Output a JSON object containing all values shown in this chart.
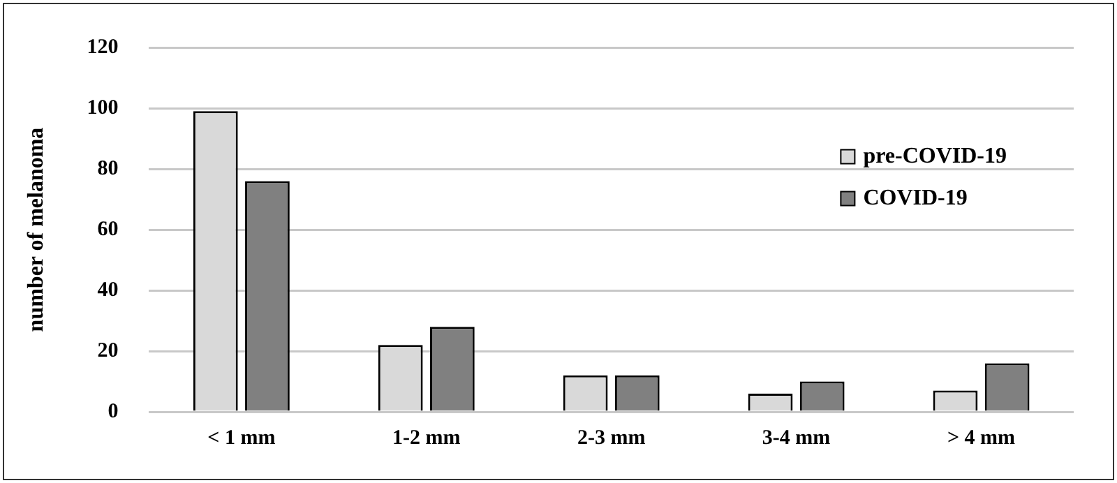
{
  "chart_data": {
    "type": "bar",
    "ylabel": "number of melanoma",
    "categories": [
      "< 1 mm",
      "1-2 mm",
      "2-3 mm",
      "3-4 mm",
      "> 4 mm"
    ],
    "series": [
      {
        "name": "pre-COVID-19",
        "color": "#d9d9d9",
        "values": [
          99,
          22,
          12,
          6,
          7
        ]
      },
      {
        "name": "COVID-19",
        "color": "#808080",
        "values": [
          76,
          28,
          12,
          10,
          16
        ]
      }
    ],
    "ylim": [
      0,
      120
    ],
    "yticks": [
      0,
      20,
      40,
      60,
      80,
      100,
      120
    ],
    "grid": "y",
    "legend": "right"
  }
}
